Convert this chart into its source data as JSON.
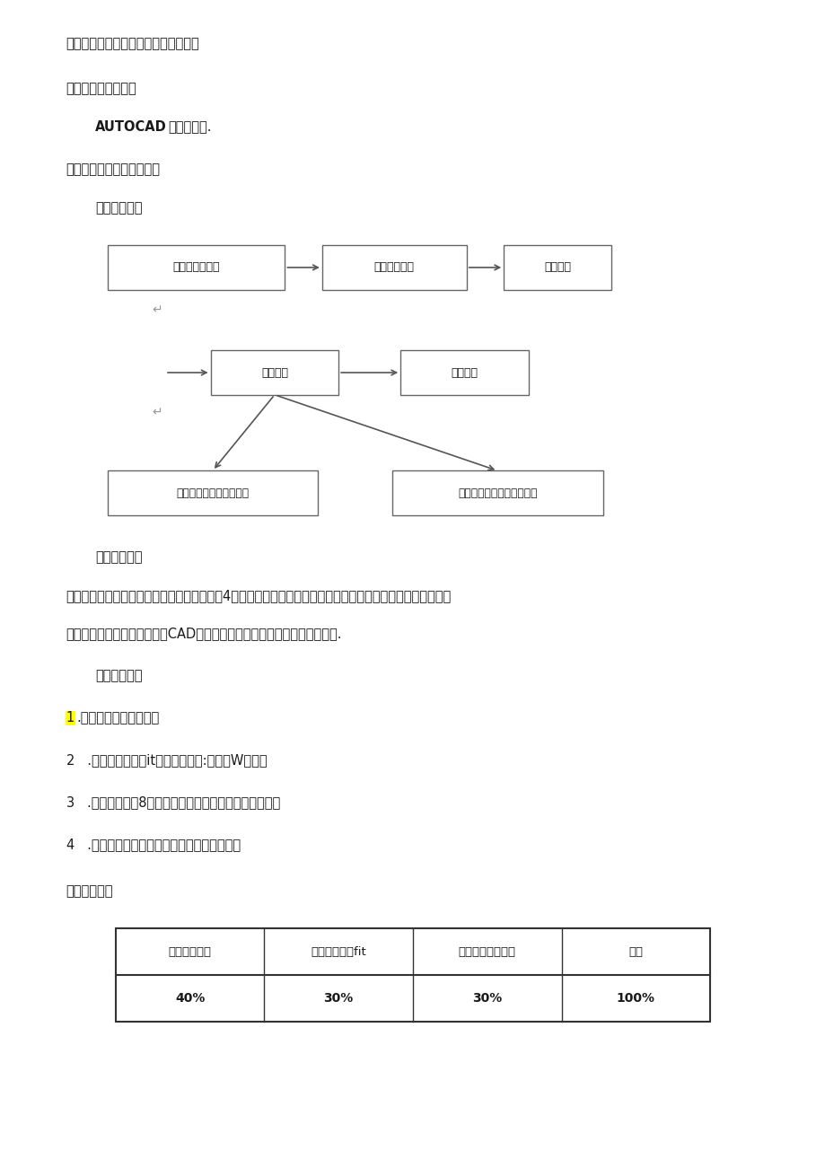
{
  "bg_color": "#ffffff",
  "page_width": 9.2,
  "page_height": 13.01,
  "text_color": "#1a1a1a",
  "line1": "内容（方法、步骤、要求或考核标准）",
  "line2": "一、实训设备与工具",
  "line3a": "AUTOCAD",
  "line3b": "软件、电脑.",
  "line4": "二、实训步骤、方法与要求",
  "line5": "（一）步骤：",
  "flow_boxes_row1": [
    "组长领取任务单",
    "成员领会任务",
    "任务分析"
  ],
  "flow_boxes_row2": [
    "任务实施",
    "成果提交"
  ],
  "flow_boxes_row3": [
    "基站设备安装工程平面图",
    "基站设备安装工程走线架图"
  ],
  "method_label": "（二）方法：",
  "method_text1": "在拿握基站工程设计的相关理论知识后对任务4的勘察草图进行基站工程的平面设计和走线架设计，对草图进行",
  "method_text2": "完善，添加图纸组成元素．用CAD软件绘制出能够指导工人施工的工程图纸.",
  "req_label": "（三）要求：",
  "req1_highlight": "1",
  "req1_rest": ".理解基站设得安装要求",
  "req2": "2   .理解节电池容量it弛及开关电海:容此计W及选型",
  "req3": "3   .课中完成任务8中设备安装工程平面图及走践架图绘制",
  "req4": "4   .回答教师课堂问他和其它小组同学提问问题",
  "section3": "三、评分标准",
  "table_headers": [
    "图纸要素齐全",
    "基站平面图质fit",
    "基站走线架图质量",
    "总分"
  ],
  "table_values": [
    "40%",
    "30%",
    "30%",
    "100%"
  ]
}
